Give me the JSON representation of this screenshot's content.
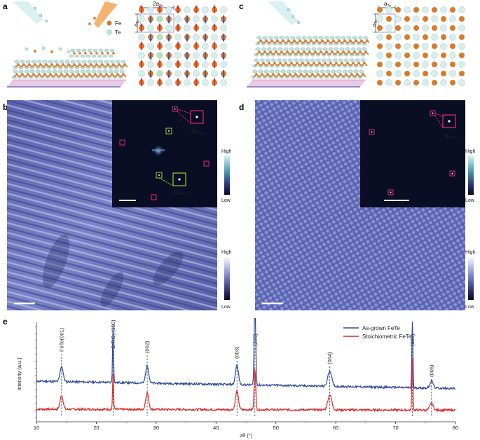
{
  "panels": {
    "a": {
      "label": "a",
      "legend": {
        "fe": "Fe",
        "te": "Te"
      },
      "lattice_label": "2a",
      "lattice_sub": "Te",
      "side_label": "a",
      "side_sub": "Te"
    },
    "b": {
      "label": "b",
      "inset_q_bragg": "Q",
      "inset_q_bragg_sub": "Bragg",
      "inset_q_afm": "Q",
      "inset_q_afm_sub": "AFM",
      "inset_colorbar": {
        "high": "High",
        "low": "Low"
      },
      "colorbar": {
        "high": "High",
        "low": "Low"
      }
    },
    "c": {
      "label": "c",
      "lattice_label": "a",
      "lattice_sub": "Te",
      "side_label": "a",
      "side_sub": "Te"
    },
    "d": {
      "label": "d",
      "inset_q_bragg": "Q",
      "inset_q_bragg_sub": "Bragg",
      "inset_colorbar": {
        "high": "High",
        "low": "Low"
      },
      "colorbar": {
        "high": "High",
        "low": "Low"
      }
    },
    "e": {
      "label": "e"
    }
  },
  "colors": {
    "fe": "#d97a2b",
    "te": "#bfe3e0",
    "stm": "#6a72b8",
    "inset_bg": "#0a0e24",
    "bragg_box": "#e0257a",
    "afm_box": "#8fcf3a",
    "as_grown": "#2e4a9e",
    "stoich": "#e02828"
  },
  "chart_data": {
    "type": "line",
    "xlabel": "2θ (°)",
    "ylabel": "Intensity (a.u.)",
    "xlim": [
      10,
      80
    ],
    "xticks": [
      10,
      20,
      30,
      40,
      50,
      60,
      70,
      80
    ],
    "legend_position": "top-right",
    "series": [
      {
        "name": "As-grown FeTe",
        "color": "#2e4a9e"
      },
      {
        "name": "Stoichiometric FeTe",
        "color": "#e02828"
      }
    ],
    "peaks": [
      {
        "x": 14.2,
        "label": "FeTe(001)"
      },
      {
        "x": 22.8,
        "label": "SrTiO (100)",
        "sub": "3"
      },
      {
        "x": 28.5,
        "label": "(002)"
      },
      {
        "x": 43.5,
        "label": "(003)"
      },
      {
        "x": 46.5,
        "label": "(200)"
      },
      {
        "x": 59.0,
        "label": "(004)"
      },
      {
        "x": 72.8,
        "label": "(300)"
      },
      {
        "x": 76.0,
        "label": "(005)"
      }
    ]
  }
}
